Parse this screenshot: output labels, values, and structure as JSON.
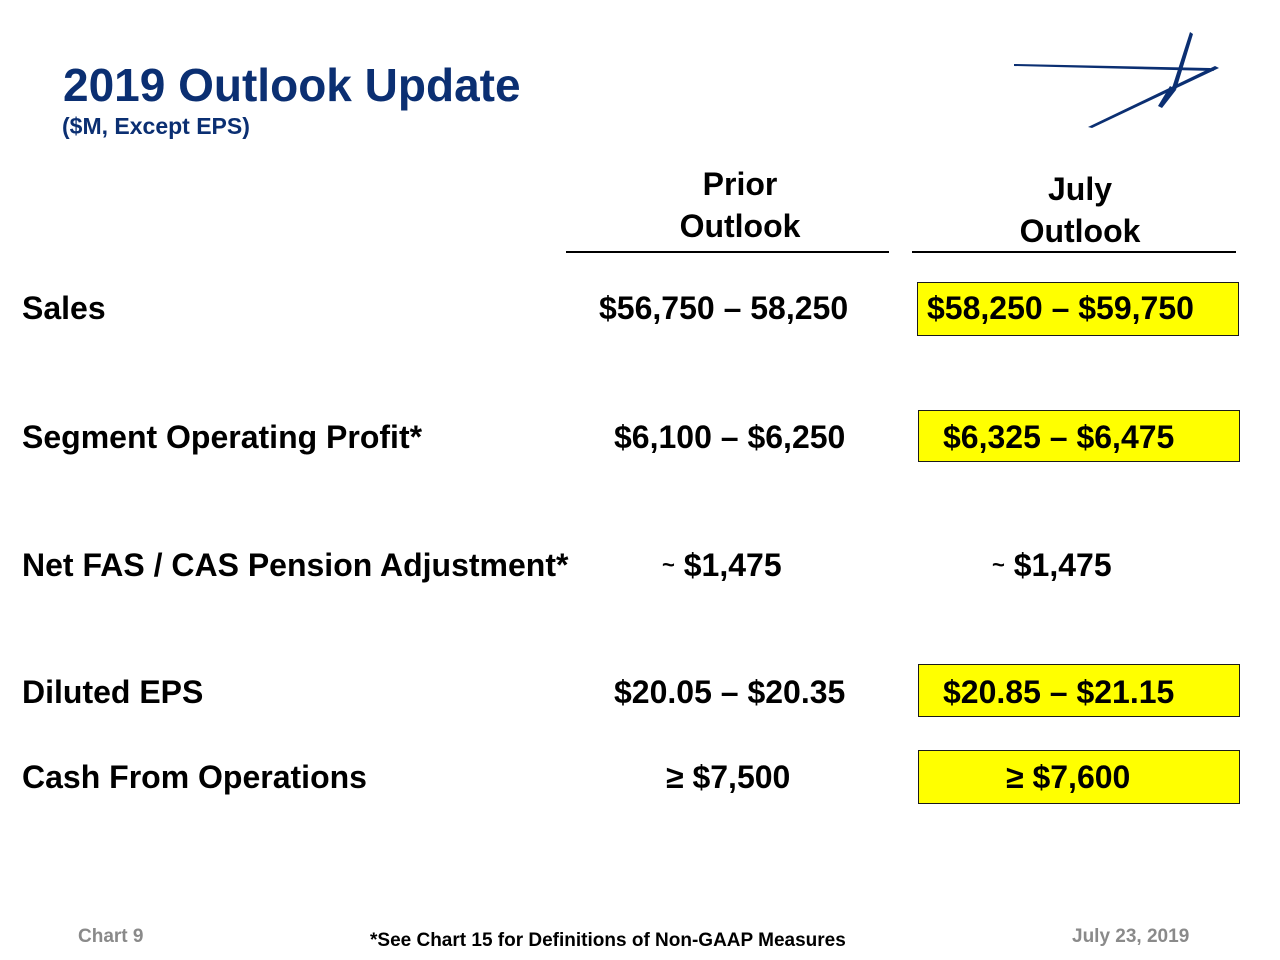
{
  "header": {
    "title": "2019 Outlook Update",
    "subtitle": "($M, Except EPS)"
  },
  "logo": {
    "icon": "star-streak-logo-icon",
    "color": "#0b2f72"
  },
  "columns": {
    "prior": [
      "Prior",
      "Outlook"
    ],
    "july": [
      "July",
      "Outlook"
    ]
  },
  "rows": [
    {
      "label": "Sales",
      "prior": "$56,750 – 58,250",
      "july": "$58,250 – $59,750",
      "highlighted": true
    },
    {
      "label": "Segment Operating Profit*",
      "prior": "$6,100 – $6,250",
      "july": "$6,325 – $6,475",
      "highlighted": true
    },
    {
      "label": "Net FAS / CAS Pension Adjustment*",
      "prior_prefix": "~",
      "prior": "$1,475",
      "july_prefix": "~",
      "july": "$1,475",
      "highlighted": false
    },
    {
      "label": "Diluted EPS",
      "prior": "$20.05 – $20.35",
      "july": "$20.85 – $21.15",
      "highlighted": true
    },
    {
      "label": "Cash From Operations",
      "prior": "≥ $7,500",
      "july": "≥ $7,600",
      "highlighted": true
    }
  ],
  "footer": {
    "chart_number": "Chart 9",
    "note": "*See Chart 15 for Definitions of Non-GAAP Measures",
    "date": "July 23, 2019"
  },
  "colors": {
    "title": "#0b2f72",
    "highlight": "#ffff00",
    "footer_gray": "#8a8a8a"
  }
}
